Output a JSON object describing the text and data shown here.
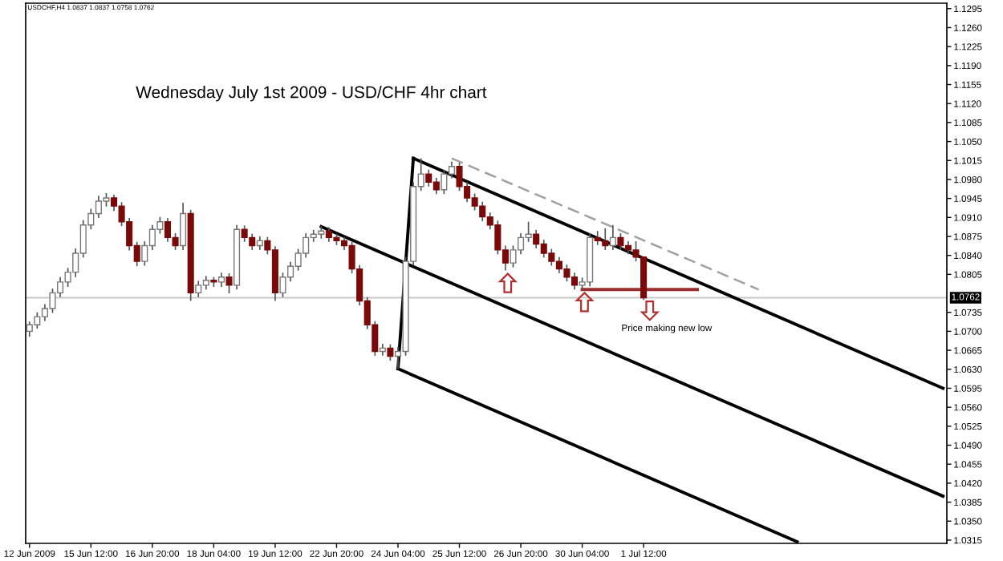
{
  "chart_data": {
    "type": "candlestick",
    "title": "Wednesday July 1st 2009 - USD/CHF 4hr chart",
    "annotations": [
      "USDCHF,H4 1.0837 1.0837 1.0758 1.0762",
      "Price making new low"
    ],
    "ylim": [
      1.0309,
      1.1305
    ],
    "categories": [
      "12 Jun 2009",
      null,
      null,
      null,
      null,
      null,
      null,
      null,
      "15 Jun 12:00",
      null,
      null,
      null,
      null,
      null,
      null,
      null,
      "16 Jun 20:00",
      null,
      null,
      null,
      null,
      null,
      null,
      null,
      "18 Jun 04:00",
      null,
      null,
      null,
      null,
      null,
      null,
      null,
      "19 Jun 12:00",
      null,
      null,
      null,
      null,
      null,
      null,
      null,
      "22 Jun 20:00",
      null,
      null,
      null,
      null,
      null,
      null,
      null,
      "24 Jun 04:00",
      null,
      null,
      null,
      null,
      null,
      null,
      null,
      "25 Jun 12:00",
      null,
      null,
      null,
      null,
      null,
      null,
      null,
      "26 Jun 20:00",
      null,
      null,
      null,
      null,
      null,
      null,
      null,
      "30 Jun 04:00",
      null,
      null,
      null,
      null,
      null,
      null,
      null,
      "1 Jul 12:00",
      null,
      null,
      null,
      null,
      null,
      null,
      null,
      null,
      null,
      null,
      null,
      null,
      null,
      null,
      null,
      null,
      null,
      null,
      null,
      null,
      null,
      null,
      null,
      null,
      null,
      null,
      null,
      null,
      null,
      null,
      null,
      null,
      null,
      null,
      null,
      null,
      null,
      null,
      null
    ],
    "yticks": [
      {
        "value": 1.1295,
        "label": "1.1295"
      },
      {
        "value": 1.126,
        "label": "1.1260"
      },
      {
        "value": 1.1225,
        "label": "1.1225"
      },
      {
        "value": 1.119,
        "label": "1.1190"
      },
      {
        "value": 1.1155,
        "label": "1.1155"
      },
      {
        "value": 1.112,
        "label": "1.1120"
      },
      {
        "value": 1.1085,
        "label": "1.1085"
      },
      {
        "value": 1.105,
        "label": "1.1050"
      },
      {
        "value": 1.1015,
        "label": "1.1015"
      },
      {
        "value": 1.098,
        "label": "1.0980"
      },
      {
        "value": 1.0945,
        "label": "1.0945"
      },
      {
        "value": 1.091,
        "label": "1.0910"
      },
      {
        "value": 1.0875,
        "label": "1.0875"
      },
      {
        "value": 1.084,
        "label": "1.0840"
      },
      {
        "value": 1.0805,
        "label": "1.0805"
      },
      {
        "value": 1.0735,
        "label": "1.0735"
      },
      {
        "value": 1.07,
        "label": "1.0700"
      },
      {
        "value": 1.0665,
        "label": "1.0665"
      },
      {
        "value": 1.063,
        "label": "1.0630"
      },
      {
        "value": 1.0595,
        "label": "1.0595"
      },
      {
        "value": 1.056,
        "label": "1.0560"
      },
      {
        "value": 1.0525,
        "label": "1.0525"
      },
      {
        "value": 1.049,
        "label": "1.0490"
      },
      {
        "value": 1.0455,
        "label": "1.0455"
      },
      {
        "value": 1.042,
        "label": "1.0420"
      },
      {
        "value": 1.0385,
        "label": "1.0385"
      },
      {
        "value": 1.035,
        "label": "1.0350"
      },
      {
        "value": 1.0315,
        "label": "1.0315"
      }
    ],
    "grid": false,
    "legend": false,
    "ref_lines": [
      {
        "axis": "y",
        "value": 1.0762,
        "label": "1.0762",
        "color": "#c8c8c8"
      }
    ],
    "series": [
      {
        "ohlc": [
          [
            1.07,
            1.0718,
            1.069,
            1.0712
          ],
          [
            1.0712,
            1.0735,
            1.0705,
            1.0727
          ],
          [
            1.0727,
            1.075,
            1.0719,
            1.0742
          ],
          [
            1.0742,
            1.0779,
            1.0734,
            1.0771
          ],
          [
            1.0771,
            1.08,
            1.0763,
            1.0791
          ],
          [
            1.0791,
            1.0817,
            1.0782,
            1.0809
          ],
          [
            1.0809,
            1.0853,
            1.08,
            1.0844
          ],
          [
            1.0844,
            1.0905,
            1.0836,
            1.0896
          ],
          [
            1.0896,
            1.0926,
            1.0888,
            1.0917
          ],
          [
            1.0917,
            1.095,
            1.0909,
            1.094
          ],
          [
            1.094,
            1.0955,
            1.093,
            1.0946
          ],
          [
            1.0946,
            1.0952,
            1.0922,
            1.0931
          ],
          [
            1.0931,
            1.0938,
            1.0894,
            1.0902
          ],
          [
            1.0902,
            1.0909,
            1.0849,
            1.0858
          ],
          [
            1.0858,
            1.0865,
            1.082,
            1.0829
          ],
          [
            1.0829,
            1.0866,
            1.0821,
            1.0858
          ],
          [
            1.0858,
            1.0896,
            1.085,
            1.0888
          ],
          [
            1.0888,
            1.0911,
            1.088,
            1.0902
          ],
          [
            1.0902,
            1.0909,
            1.0865,
            1.0873
          ],
          [
            1.0873,
            1.0881,
            1.085,
            1.0858
          ],
          [
            1.0858,
            1.0937,
            1.085,
            1.0917
          ],
          [
            1.0917,
            1.0924,
            1.0756,
            1.0771
          ],
          [
            1.0771,
            1.0793,
            1.0763,
            1.0785
          ],
          [
            1.0785,
            1.0802,
            1.0777,
            1.0794
          ],
          [
            1.0794,
            1.08,
            1.0782,
            1.0791
          ],
          [
            1.0791,
            1.0808,
            1.0782,
            1.08
          ],
          [
            1.08,
            1.0807,
            1.077,
            1.0785
          ],
          [
            1.0785,
            1.0896,
            1.0777,
            1.0888
          ],
          [
            1.0888,
            1.0895,
            1.0865,
            1.0873
          ],
          [
            1.0873,
            1.088,
            1.085,
            1.0858
          ],
          [
            1.0858,
            1.0875,
            1.085,
            1.0867
          ],
          [
            1.0867,
            1.0874,
            1.0842,
            1.085
          ],
          [
            1.085,
            1.0857,
            1.0756,
            1.0771
          ],
          [
            1.0771,
            1.0808,
            1.0763,
            1.08
          ],
          [
            1.08,
            1.0828,
            1.0792,
            1.082
          ],
          [
            1.082,
            1.0852,
            1.0812,
            1.0844
          ],
          [
            1.0844,
            1.0881,
            1.0836,
            1.0873
          ],
          [
            1.0873,
            1.0887,
            1.0865,
            1.0879
          ],
          [
            1.0879,
            1.0894,
            1.0871,
            1.0885
          ],
          [
            1.0885,
            1.0892,
            1.0865,
            1.0873
          ],
          [
            1.0873,
            1.088,
            1.0859,
            1.0867
          ],
          [
            1.0867,
            1.0874,
            1.085,
            1.0858
          ],
          [
            1.0858,
            1.0865,
            1.0807,
            1.0815
          ],
          [
            1.0815,
            1.0822,
            1.0748,
            1.0756
          ],
          [
            1.0756,
            1.0763,
            1.0704,
            1.0712
          ],
          [
            1.0712,
            1.0719,
            1.0655,
            1.0663
          ],
          [
            1.0663,
            1.0677,
            1.0655,
            1.0669
          ],
          [
            1.0669,
            1.0676,
            1.0646,
            1.0654
          ],
          [
            1.0654,
            1.0671,
            1.0631,
            1.0663
          ],
          [
            1.0663,
            1.0837,
            1.0655,
            1.0829
          ],
          [
            1.0829,
            1.0975,
            1.0821,
            1.0967
          ],
          [
            1.0967,
            1.1019,
            1.0959,
            1.099
          ],
          [
            1.099,
            1.0998,
            1.0967,
            1.0975
          ],
          [
            1.0975,
            1.0983,
            1.0953,
            1.0961
          ],
          [
            1.0961,
            1.0998,
            1.0953,
            1.099
          ],
          [
            1.099,
            1.1013,
            1.0982,
            1.1004
          ],
          [
            1.1004,
            1.1011,
            1.0959,
            1.0967
          ],
          [
            1.0967,
            1.0975,
            1.0938,
            1.0946
          ],
          [
            1.0946,
            1.0954,
            1.0923,
            1.0931
          ],
          [
            1.0931,
            1.0939,
            1.0903,
            1.0911
          ],
          [
            1.0911,
            1.0919,
            1.0888,
            1.0896
          ],
          [
            1.0896,
            1.0904,
            1.0842,
            1.085
          ],
          [
            1.085,
            1.0858,
            1.0812,
            1.0826
          ],
          [
            1.0826,
            1.0858,
            1.0818,
            1.085
          ],
          [
            1.085,
            1.0881,
            1.0842,
            1.0873
          ],
          [
            1.0873,
            1.0902,
            1.0865,
            1.0879
          ],
          [
            1.0879,
            1.0887,
            1.0853,
            1.0861
          ],
          [
            1.0861,
            1.0869,
            1.0836,
            1.0844
          ],
          [
            1.0844,
            1.0852,
            1.0821,
            1.0829
          ],
          [
            1.0829,
            1.0837,
            1.0807,
            1.0815
          ],
          [
            1.0815,
            1.0823,
            1.0792,
            1.08
          ],
          [
            1.08,
            1.0808,
            1.0777,
            1.0785
          ],
          [
            1.0785,
            1.0799,
            1.0777,
            1.0791
          ],
          [
            1.0791,
            1.0881,
            1.0783,
            1.0873
          ],
          [
            1.0873,
            1.0885,
            1.0859,
            1.0867
          ],
          [
            1.0867,
            1.089,
            1.085,
            1.0858
          ],
          [
            1.0858,
            1.0896,
            1.085,
            1.0873
          ],
          [
            1.0873,
            1.0881,
            1.085,
            1.0858
          ],
          [
            1.0858,
            1.0866,
            1.0842,
            1.085
          ],
          [
            1.085,
            1.0866,
            1.0829,
            1.0837
          ],
          [
            1.0837,
            1.0837,
            1.0758,
            1.0762
          ],
          null,
          null,
          null,
          null,
          null,
          null,
          null,
          null,
          null,
          null,
          null,
          null,
          null,
          null,
          null,
          null,
          null,
          null,
          null,
          null,
          null,
          null,
          null,
          null,
          null,
          null,
          null,
          null,
          null,
          null,
          null,
          null,
          null,
          null,
          null,
          null,
          null,
          null,
          null
        ]
      },
      {
        "type": "line",
        "color": "#000000",
        "line_style": "solid",
        "values": [
          null,
          null,
          null,
          null,
          null,
          null,
          null,
          null,
          null,
          null,
          null,
          null,
          null,
          null,
          null,
          null,
          null,
          null,
          null,
          null,
          null,
          null,
          null,
          null,
          null,
          null,
          null,
          null,
          null,
          null,
          null,
          null,
          null,
          null,
          null,
          null,
          null,
          null,
          null,
          null,
          null,
          null,
          null,
          null,
          null,
          null,
          null,
          null,
          1.0631,
          null,
          1.1019,
          null,
          null,
          null,
          null,
          null,
          null,
          null,
          null,
          null,
          null,
          null,
          null,
          null,
          null,
          null,
          null,
          null,
          null,
          null,
          null,
          null,
          null,
          null,
          null,
          null,
          null,
          null,
          null,
          null,
          null,
          null,
          null,
          null,
          null,
          null,
          null,
          null,
          null,
          null,
          null,
          null,
          null,
          null,
          null,
          null,
          null,
          null,
          null,
          null,
          null,
          null,
          null,
          null,
          null,
          null,
          null,
          null,
          null,
          null,
          null,
          null,
          null,
          null,
          null,
          null,
          null,
          null,
          null,
          null
        ]
      },
      {
        "type": "line",
        "color": "#000000",
        "line_style": "solid",
        "values": [
          null,
          null,
          null,
          null,
          null,
          null,
          null,
          null,
          null,
          null,
          null,
          null,
          null,
          null,
          null,
          null,
          null,
          null,
          null,
          null,
          null,
          null,
          null,
          null,
          null,
          null,
          null,
          null,
          null,
          null,
          null,
          null,
          null,
          null,
          null,
          null,
          null,
          null,
          null,
          null,
          null,
          null,
          null,
          null,
          null,
          null,
          null,
          null,
          null,
          null,
          1.1019,
          null,
          null,
          null,
          null,
          null,
          null,
          null,
          null,
          null,
          null,
          null,
          null,
          null,
          null,
          null,
          null,
          null,
          null,
          null,
          null,
          null,
          null,
          null,
          null,
          null,
          null,
          null,
          null,
          null,
          null,
          null,
          null,
          null,
          null,
          null,
          null,
          null,
          null,
          null,
          null,
          null,
          null,
          null,
          null,
          null,
          null,
          null,
          null,
          null,
          null,
          null,
          null,
          null,
          null,
          null,
          null,
          null,
          null,
          null,
          null,
          null,
          null,
          null,
          null,
          null,
          null,
          null,
          null,
          1.0595
        ]
      },
      {
        "type": "line",
        "color": "#000000",
        "line_style": "solid",
        "values": [
          null,
          null,
          null,
          null,
          null,
          null,
          null,
          null,
          null,
          null,
          null,
          null,
          null,
          null,
          null,
          null,
          null,
          null,
          null,
          null,
          null,
          null,
          null,
          null,
          null,
          null,
          null,
          null,
          null,
          null,
          null,
          null,
          null,
          null,
          null,
          null,
          null,
          null,
          1.0893,
          null,
          null,
          null,
          null,
          null,
          null,
          null,
          null,
          null,
          null,
          null,
          null,
          null,
          null,
          null,
          null,
          null,
          null,
          null,
          null,
          null,
          null,
          null,
          null,
          null,
          null,
          null,
          null,
          null,
          null,
          null,
          null,
          null,
          null,
          null,
          null,
          null,
          null,
          null,
          null,
          null,
          null,
          null,
          null,
          null,
          null,
          null,
          null,
          null,
          null,
          null,
          null,
          null,
          null,
          null,
          null,
          null,
          null,
          null,
          null,
          null,
          null,
          null,
          null,
          null,
          null,
          null,
          null,
          null,
          null,
          null,
          null,
          null,
          null,
          null,
          null,
          null,
          null,
          null,
          null,
          1.0396
        ]
      },
      {
        "type": "line",
        "color": "#000000",
        "line_style": "solid",
        "values": [
          null,
          null,
          null,
          null,
          null,
          null,
          null,
          null,
          null,
          null,
          null,
          null,
          null,
          null,
          null,
          null,
          null,
          null,
          null,
          null,
          null,
          null,
          null,
          null,
          null,
          null,
          null,
          null,
          null,
          null,
          null,
          null,
          null,
          null,
          null,
          null,
          null,
          null,
          null,
          null,
          null,
          null,
          null,
          null,
          null,
          null,
          null,
          null,
          1.0631,
          null,
          null,
          null,
          null,
          null,
          null,
          null,
          null,
          null,
          null,
          null,
          null,
          null,
          null,
          null,
          null,
          null,
          null,
          null,
          null,
          null,
          null,
          null,
          null,
          null,
          null,
          null,
          null,
          null,
          null,
          null,
          null,
          null,
          null,
          null,
          null,
          null,
          null,
          null,
          null,
          null,
          null,
          null,
          null,
          null,
          null,
          null,
          null,
          null,
          null,
          null,
          1.0312,
          null,
          null,
          null,
          null,
          null,
          null,
          null,
          null,
          null,
          null,
          null,
          null,
          null,
          null,
          null,
          null,
          null,
          null,
          null
        ]
      },
      {
        "type": "line",
        "color": "#a0a0a0",
        "line_style": "dashed",
        "values": [
          null,
          null,
          null,
          null,
          null,
          null,
          null,
          null,
          null,
          null,
          null,
          null,
          null,
          null,
          null,
          null,
          null,
          null,
          null,
          null,
          null,
          null,
          null,
          null,
          null,
          null,
          null,
          null,
          null,
          null,
          null,
          null,
          null,
          null,
          null,
          null,
          null,
          null,
          null,
          null,
          null,
          null,
          null,
          null,
          null,
          null,
          null,
          null,
          null,
          null,
          null,
          null,
          null,
          null,
          null,
          1.1019,
          null,
          null,
          null,
          null,
          null,
          null,
          null,
          null,
          null,
          null,
          null,
          null,
          null,
          null,
          null,
          null,
          null,
          null,
          null,
          null,
          null,
          null,
          null,
          null,
          null,
          null,
          null,
          null,
          null,
          null,
          null,
          null,
          null,
          null,
          null,
          null,
          null,
          null,
          null,
          1.0777,
          null,
          null,
          null,
          null,
          null,
          null,
          null,
          null,
          null,
          null,
          null,
          null,
          null,
          null,
          null,
          null,
          null,
          null,
          null,
          null,
          null,
          null,
          null,
          null
        ]
      },
      {
        "type": "line",
        "color": "#9b2d2d",
        "line_style": "solid",
        "values": [
          null,
          null,
          null,
          null,
          null,
          null,
          null,
          null,
          null,
          null,
          null,
          null,
          null,
          null,
          null,
          null,
          null,
          null,
          null,
          null,
          null,
          null,
          null,
          null,
          null,
          null,
          null,
          null,
          null,
          null,
          null,
          null,
          null,
          null,
          null,
          null,
          null,
          null,
          null,
          null,
          null,
          null,
          null,
          null,
          null,
          null,
          null,
          null,
          null,
          null,
          null,
          null,
          null,
          null,
          null,
          null,
          null,
          null,
          null,
          null,
          null,
          null,
          null,
          null,
          null,
          null,
          null,
          null,
          null,
          null,
          null,
          null,
          1.0777,
          null,
          null,
          null,
          null,
          null,
          null,
          null,
          null,
          null,
          null,
          null,
          null,
          null,
          null,
          1.0777,
          null,
          null,
          null,
          null,
          null,
          null,
          null,
          null,
          null,
          null,
          null,
          null,
          null,
          null,
          null,
          null,
          null,
          null,
          null,
          null,
          null,
          null,
          null,
          null,
          null,
          null,
          null,
          null,
          null,
          null,
          null,
          null
        ]
      }
    ]
  }
}
